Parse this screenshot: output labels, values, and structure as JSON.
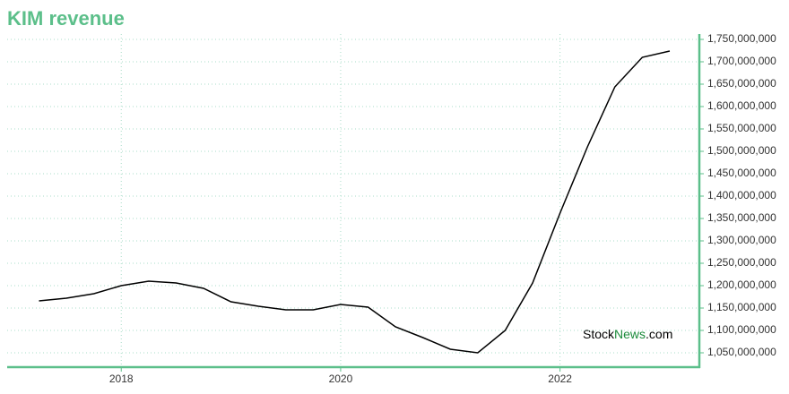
{
  "chart_data": {
    "type": "line",
    "title": "KIM revenue",
    "watermark": [
      "Stock",
      "News",
      ".com"
    ],
    "x": [
      2017.25,
      2017.5,
      2017.75,
      2018,
      2018.25,
      2018.5,
      2018.75,
      2019,
      2019.25,
      2019.5,
      2019.75,
      2020,
      2020.25,
      2020.5,
      2020.75,
      2021,
      2021.25,
      2021.5,
      2021.75,
      2022,
      2022.25,
      2022.5,
      2022.75,
      2023
    ],
    "series": [
      {
        "name": "revenue",
        "color": "#000000",
        "values": [
          1166000000,
          1172000000,
          1182000000,
          1200000000,
          1210000000,
          1206000000,
          1194000000,
          1164000000,
          1154000000,
          1146000000,
          1146000000,
          1158000000,
          1152000000,
          1108000000,
          1084000000,
          1058000000,
          1050000000,
          1100000000,
          1206000000,
          1362000000,
          1510000000,
          1644000000,
          1710000000,
          1724000000
        ]
      }
    ],
    "xlim": [
      2016.96,
      2023.27
    ],
    "xticks": [
      2018,
      2020,
      2022
    ],
    "ylim": [
      1018000000,
      1762000000
    ],
    "yticks": [
      {
        "value": 1050000000,
        "label": "1,050,000,000"
      },
      {
        "value": 1100000000,
        "label": "1,100,000,000"
      },
      {
        "value": 1150000000,
        "label": "1,150,000,000"
      },
      {
        "value": 1200000000,
        "label": "1,200,000,000"
      },
      {
        "value": 1250000000,
        "label": "1,250,000,000"
      },
      {
        "value": 1300000000,
        "label": "1,300,000,000"
      },
      {
        "value": 1350000000,
        "label": "1,350,000,000"
      },
      {
        "value": 1400000000,
        "label": "1,400,000,000"
      },
      {
        "value": 1450000000,
        "label": "1,450,000,000"
      },
      {
        "value": 1500000000,
        "label": "1,500,000,000"
      },
      {
        "value": 1550000000,
        "label": "1,550,000,000"
      },
      {
        "value": 1600000000,
        "label": "1,600,000,000"
      },
      {
        "value": 1650000000,
        "label": "1,650,000,000"
      },
      {
        "value": 1700000000,
        "label": "1,700,000,000"
      },
      {
        "value": 1750000000,
        "label": "1,750,000,000"
      }
    ],
    "grid": true
  }
}
